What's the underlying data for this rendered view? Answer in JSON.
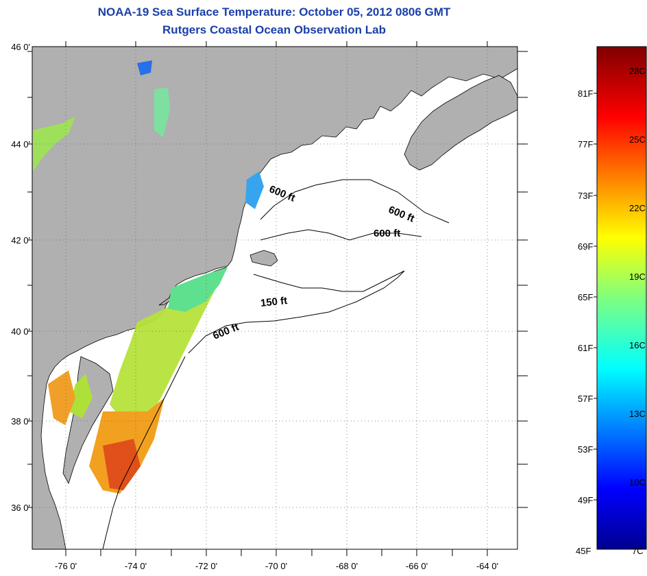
{
  "title_line1": "NOAA-19 Sea Surface Temperature:  October 05, 2012 0806 GMT",
  "title_line2": "Rutgers Coastal Ocean Observation Lab",
  "lat_labels": [
    "46 0'",
    "44 0'",
    "42 0'",
    "40 0'",
    "38 0'",
    "36 0'"
  ],
  "lon_labels": [
    "-76 0'",
    "-74 0'",
    "-72 0'",
    "-70 0'",
    "-68 0'",
    "-66 0'",
    "-64 0'"
  ],
  "contour_labels": {
    "c1": "600 ft",
    "c2": "600 ft",
    "c3": "600 ft",
    "c4": "150 ft",
    "c5": "600 ft"
  },
  "colorbar": {
    "fahrenheit": [
      "81F",
      "77F",
      "73F",
      "69F",
      "65F",
      "61F",
      "57F",
      "53F",
      "49F",
      "45F"
    ],
    "celsius": [
      "28C",
      "25C",
      "22C",
      "19C",
      "16C",
      "13C",
      "10C",
      "7C"
    ]
  },
  "colors": {
    "title": "#1a3fa8",
    "land": "#b0b0b0",
    "ocean": "#ffffff"
  }
}
